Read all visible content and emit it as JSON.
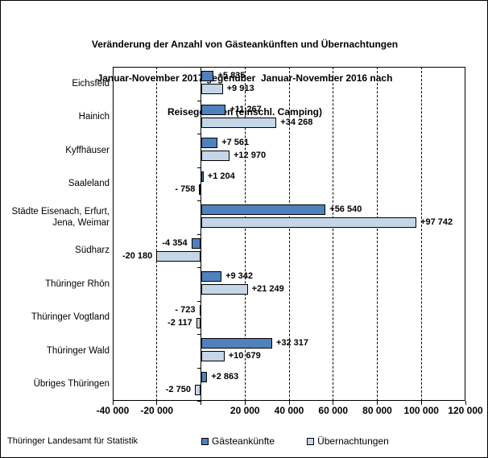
{
  "title": {
    "lines": [
      "Veränderung der Anzahl von Gästeankünften und Übernachtungen",
      "Januar-November 2017 gegenüber  Januar-November 2016 nach",
      "Reisegebieten (einschl. Camping)"
    ]
  },
  "footer": {
    "source": "Thüringer Landesamt für Statistik"
  },
  "colors": {
    "arrivals_bar": "#4f81bd",
    "overnights_bar": "#c4d6e8",
    "bar_border": "#000000",
    "axis": "#000000"
  },
  "chart_data": {
    "type": "bar",
    "orientation": "horizontal",
    "title": "Veränderung der Anzahl von Gästeankünften und Übernachtungen Januar-November 2017 gegenüber Januar-November 2016 nach Reisegebieten (einschl. Camping)",
    "categories": [
      "Eichsfeld",
      "Hainich",
      "Kyffhäuser",
      "Saaleland",
      "Städte Eisenach, Erfurt,\nJena, Weimar",
      "Südharz",
      "Thüringer Rhön",
      "Thüringer Vogtland",
      "Thüringer Wald",
      "Übriges Thüringen"
    ],
    "series": [
      {
        "name": "Gästeankünfte",
        "color": "#4f81bd",
        "values": [
          5835,
          11267,
          7561,
          1204,
          56540,
          -4354,
          9342,
          -723,
          32317,
          2863
        ],
        "labels": [
          "+5 835",
          "+11 267",
          "+7 561",
          "+1 204",
          "+56 540",
          "-4 354",
          "+9 342",
          "- 723",
          "+32 317",
          "+2 863"
        ]
      },
      {
        "name": "Übernachtungen",
        "color": "#c4d6e8",
        "values": [
          9913,
          34268,
          12970,
          -758,
          97742,
          -20180,
          21249,
          -2117,
          10679,
          -2750
        ],
        "labels": [
          "+9 913",
          "+34 268",
          "+12 970",
          "- 758",
          "+97 742",
          "-20 180",
          "+21 249",
          "-2 117",
          "+10 679",
          "-2 750"
        ]
      }
    ],
    "xlim": [
      -40000,
      120000
    ],
    "x_ticks": [
      {
        "v": -40000,
        "label": "-40 000"
      },
      {
        "v": -20000,
        "label": "-20 000"
      },
      {
        "v": 0,
        "label": ""
      },
      {
        "v": 20000,
        "label": "20 000"
      },
      {
        "v": 40000,
        "label": "40 000"
      },
      {
        "v": 60000,
        "label": "60 000"
      },
      {
        "v": 80000,
        "label": "80 000"
      },
      {
        "v": 100000,
        "label": "100 000"
      },
      {
        "v": 120000,
        "label": "120 000"
      }
    ],
    "gridline_values": [
      -20000,
      20000,
      40000,
      60000,
      80000,
      100000
    ],
    "grid": "dashed-vertical",
    "legend_position": "bottom"
  }
}
